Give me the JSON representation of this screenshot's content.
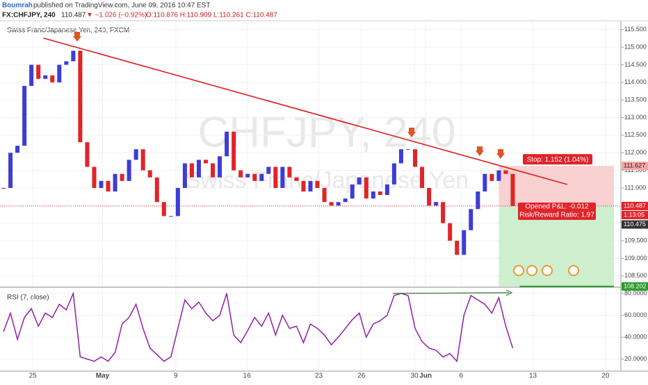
{
  "header": {
    "author": "Boumrah",
    "published": "published on TradingView.com, June 09, 2016 10:47 EST",
    "symbol": "FX:CHFJPY, 240",
    "last": "110.487",
    "change": "▼ −1.026 (−0.92%)",
    "ohlc": "O:110.876 H:110.909 L:110.261 C:110.487"
  },
  "chart_data": {
    "type": "candlestick",
    "title": "Swiss Franc/Japanese Yen, 240, FXCM",
    "watermark": "CHFJPY, 240",
    "watermark_sub": "Swiss Franc/Japanese Yen",
    "up_color": "#3d3dd4",
    "down_color": "#e0242a",
    "closes": [
      111.0,
      112.0,
      112.2,
      113.9,
      114.5,
      114.1,
      114.2,
      114.0,
      114.5,
      114.6,
      114.9,
      112.3,
      111.6,
      111.0,
      111.2,
      110.9,
      111.4,
      111.2,
      111.8,
      112.1,
      111.5,
      111.3,
      110.6,
      110.2,
      110.2,
      111.0,
      111.7,
      111.3,
      111.8,
      111.7,
      111.3,
      111.9,
      112.6,
      111.5,
      111.3,
      111.4,
      111.2,
      111.4,
      111.6,
      111.0,
      111.6,
      111.3,
      111.2,
      110.9,
      111.2,
      111.0,
      110.6,
      110.5,
      110.6,
      110.7,
      111.1,
      111.3,
      110.7,
      110.9,
      110.8,
      111.1,
      111.7,
      112.1,
      112.1,
      111.6,
      111.0,
      110.5,
      110.6,
      110.0,
      109.5,
      109.1,
      109.8,
      110.4,
      110.9,
      111.4,
      111.2,
      111.5,
      111.4,
      110.487
    ],
    "xlim": [
      -0.5,
      88.5
    ],
    "xticks": [
      {
        "value": 4.2,
        "label": "25"
      },
      {
        "value": 14.2,
        "label": "May"
      },
      {
        "value": 24.7,
        "label": "9"
      },
      {
        "value": 34.9,
        "label": "16"
      },
      {
        "value": 45.2,
        "label": "23"
      },
      {
        "value": 51.3,
        "label": "26"
      },
      {
        "value": 58.9,
        "label": "30"
      },
      {
        "value": 60.5,
        "label": "Jun"
      },
      {
        "value": 65.6,
        "label": "6"
      },
      {
        "value": 75.9,
        "label": "13"
      },
      {
        "value": 86.3,
        "label": "20"
      }
    ],
    "ylim": [
      108.2,
      115.75
    ],
    "yticks": [
      {
        "value": 108.5,
        "label": "108.500"
      },
      {
        "value": 109,
        "label": "109.000"
      },
      {
        "value": 109.5,
        "label": "109.500"
      },
      {
        "value": 110,
        "label": "110.000"
      },
      {
        "value": 110.5,
        "label": "110.500"
      },
      {
        "value": 111,
        "label": "111.000"
      },
      {
        "value": 111.5,
        "label": "111.500"
      },
      {
        "value": 112,
        "label": "112.000"
      },
      {
        "value": 112.5,
        "label": "112.500"
      },
      {
        "value": 113,
        "label": "113.000"
      },
      {
        "value": 113.5,
        "label": "113.500"
      },
      {
        "value": 114,
        "label": "114.000"
      },
      {
        "value": 114.5,
        "label": "114.500"
      },
      {
        "value": 115,
        "label": "115.000"
      },
      {
        "value": 115.5,
        "label": "115.500"
      }
    ],
    "grid": true,
    "trendline": {
      "color": "#e3191c",
      "x": [
        5.7,
        80.8
      ],
      "y": [
        115.26,
        111.1
      ]
    },
    "position": {
      "entry": 110.487,
      "stop": 111.627,
      "target": 108.202,
      "x": [
        71,
        87.5
      ],
      "stop_label": "Stop: 1.152 (1.04%)",
      "pnl_label": "Opened P&L: -0.012",
      "rr_label": "Risk/Reward Ratio: 1.97"
    },
    "axis_labels": {
      "countdown": "1:13:05",
      "bid": 110.475
    },
    "rsi": {
      "title": "RSI (7, close)",
      "color": "#8e1fa8",
      "values": [
        45,
        62,
        38,
        58,
        66,
        50,
        62,
        58,
        70,
        65,
        80,
        22,
        20,
        18,
        22,
        18,
        26,
        52,
        58,
        70,
        48,
        30,
        24,
        18,
        22,
        48,
        74,
        66,
        72,
        62,
        55,
        60,
        80,
        42,
        35,
        46,
        58,
        50,
        62,
        42,
        60,
        48,
        50,
        35,
        52,
        48,
        42,
        33,
        40,
        48,
        56,
        62,
        40,
        52,
        55,
        60,
        78,
        80,
        78,
        48,
        36,
        30,
        28,
        22,
        25,
        18,
        60,
        78,
        74,
        70,
        62,
        76,
        50,
        30
      ],
      "ylim": [
        9,
        85
      ],
      "yticks": [
        {
          "value": 20,
          "label": "20.0000"
        },
        {
          "value": 40,
          "label": "40.0000"
        },
        {
          "value": 60,
          "label": "60.0000"
        },
        {
          "value": 80,
          "label": "80.0000"
        }
      ]
    }
  }
}
